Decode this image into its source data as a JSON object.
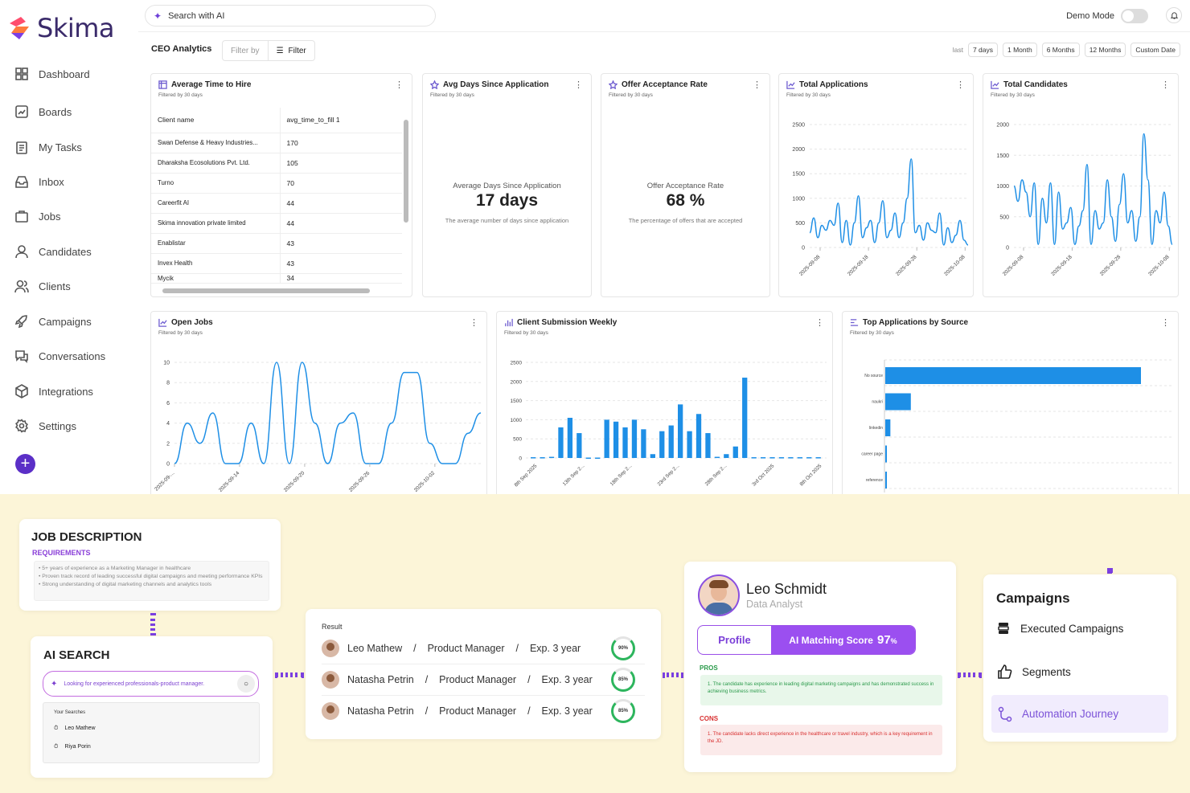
{
  "app": {
    "name": "Skima"
  },
  "sidebar": {
    "items": [
      {
        "label": "Dashboard",
        "icon": "dashboard-icon"
      },
      {
        "label": "Boards",
        "icon": "boards-icon"
      },
      {
        "label": "My Tasks",
        "icon": "tasks-icon"
      },
      {
        "label": "Inbox",
        "icon": "inbox-icon"
      },
      {
        "label": "Jobs",
        "icon": "briefcase-icon"
      },
      {
        "label": "Candidates",
        "icon": "user-icon"
      },
      {
        "label": "Clients",
        "icon": "users-icon"
      },
      {
        "label": "Campaigns",
        "icon": "rocket-icon"
      },
      {
        "label": "Conversations",
        "icon": "chat-icon"
      },
      {
        "label": "Integrations",
        "icon": "box-icon"
      },
      {
        "label": "Settings",
        "icon": "gear-icon"
      }
    ],
    "add_label": "+"
  },
  "topbar": {
    "search_placeholder": "Search with AI",
    "demo_mode_label": "Demo Mode",
    "demo_mode_on": false
  },
  "dashboard": {
    "title": "CEO Analytics",
    "filter_by": "Filter by",
    "filter_label": "Filter",
    "range_prefix": "last",
    "ranges": [
      "7 days",
      "1 Month",
      "6 Months",
      "12 Months",
      "Custom Date"
    ],
    "cards": {
      "time_to_hire": {
        "title": "Average Time to Hire",
        "subtitle": "Filtered by 30 days",
        "headers": [
          "Client name",
          "avg_time_to_fill 1"
        ],
        "rows": [
          [
            "Swan Defense & Heavy Industries...",
            "170"
          ],
          [
            "Dharaksha Ecosolutions Pvt. Ltd.",
            "105"
          ],
          [
            "Turno",
            "70"
          ],
          [
            "Careerfit AI",
            "44"
          ],
          [
            "Skima innovation private limited",
            "44"
          ],
          [
            "Enablistar",
            "43"
          ],
          [
            "Invex Health",
            "43"
          ],
          [
            "Mycik",
            "34"
          ]
        ]
      },
      "avg_days": {
        "title": "Avg Days Since Application",
        "subtitle": "Filtered by 30 days",
        "label": "Average Days Since Application",
        "value": "17 days",
        "description": "The average number of days since application"
      },
      "offer_rate": {
        "title": "Offer Acceptance Rate",
        "subtitle": "Filtered by 30 days",
        "label": "Offer Acceptance Rate",
        "value": "68 %",
        "description": "The percentage of offers that are accepted"
      },
      "total_applications": {
        "title": "Total Applications",
        "subtitle": "Filtered by 30 days"
      },
      "total_candidates": {
        "title": "Total Candidates",
        "subtitle": "Filtered by 30 days"
      },
      "open_jobs": {
        "title": "Open Jobs",
        "subtitle": "Filtered by 30 days"
      },
      "client_submission": {
        "title": "Client Submission Weekly",
        "subtitle": "Filtered by 30 days"
      },
      "top_sources": {
        "title": "Top Applications by Source",
        "subtitle": "Filtered by 30 days"
      }
    }
  },
  "chart_data": [
    {
      "id": "total_applications",
      "type": "line",
      "title": "Total Applications",
      "x_ticks": [
        "2025-09-08",
        "2025-09-18",
        "2025-09-28",
        "2025-10-08"
      ],
      "y_ticks": [
        0,
        500,
        1000,
        1500,
        2000,
        2500
      ],
      "ylim": [
        0,
        2500
      ],
      "values": [
        300,
        600,
        200,
        450,
        350,
        550,
        450,
        900,
        100,
        550,
        50,
        500,
        1050,
        200,
        400,
        550,
        100,
        500,
        950,
        200,
        350,
        700,
        200,
        500,
        1000,
        1800,
        300,
        450,
        150,
        500,
        350,
        300,
        700,
        50,
        400,
        100,
        250,
        550,
        150,
        50
      ]
    },
    {
      "id": "total_candidates",
      "type": "line",
      "title": "Total Candidates",
      "x_ticks": [
        "2025-09-08",
        "2025-09-18",
        "2025-09-28",
        "2025-10-08"
      ],
      "y_ticks": [
        0,
        500,
        1000,
        1500,
        2000
      ],
      "ylim": [
        0,
        2000
      ],
      "values": [
        1000,
        750,
        1100,
        900,
        500,
        1050,
        50,
        800,
        400,
        1050,
        50,
        900,
        300,
        400,
        650,
        50,
        350,
        600,
        1350,
        50,
        600,
        300,
        400,
        1100,
        500,
        100,
        700,
        1200,
        400,
        600,
        100,
        500,
        1850,
        1100,
        50,
        600,
        400,
        900,
        350,
        50
      ]
    },
    {
      "id": "open_jobs",
      "type": "line",
      "title": "Open Jobs",
      "x_ticks": [
        "2025-09-...",
        "2025-09-14",
        "2025-09-20",
        "2025-09-26",
        "2025-10-02"
      ],
      "y_ticks": [
        0,
        2,
        4,
        6,
        8,
        10
      ],
      "ylim": [
        0,
        10
      ],
      "values": [
        0,
        4,
        2,
        5,
        0,
        0,
        4,
        0,
        10,
        0,
        10,
        4,
        0,
        4,
        5,
        0,
        0,
        4,
        9,
        9,
        2,
        0,
        0,
        3,
        5
      ]
    },
    {
      "id": "client_submission",
      "type": "bar",
      "title": "Client Submission Weekly",
      "x_ticks": [
        "8th Sep 2025",
        "13th Sep 2...",
        "18th Sep 2...",
        "23rd Sep 2...",
        "28th Sep 2...",
        "3rd Oct 2025",
        "8th Oct 2025"
      ],
      "y_ticks": [
        0,
        500,
        1000,
        1500,
        2000,
        2500
      ],
      "ylim": [
        0,
        2500
      ],
      "values": [
        20,
        20,
        30,
        800,
        1050,
        650,
        10,
        10,
        1000,
        950,
        800,
        1000,
        750,
        100,
        700,
        850,
        1400,
        700,
        1150,
        650,
        30,
        100,
        300,
        2100,
        20,
        20,
        20,
        20,
        20,
        20,
        20,
        20
      ]
    },
    {
      "id": "top_sources",
      "type": "bar",
      "orientation": "horizontal",
      "title": "Top Applications by Source",
      "categories": [
        "No source",
        "naukri",
        "linkedin",
        "career page",
        "reference"
      ],
      "values": [
        100,
        10,
        2,
        0.5,
        0.5
      ]
    }
  ],
  "promo": {
    "job_description": {
      "title": "JOB DESCRIPTION",
      "requirements_label": "REQUIREMENTS",
      "lines": [
        "• 5+ years of experience as a Marketing Manager in healthcare",
        "• Proven track record of leading successful digital campaigns and meeting performance KPIs",
        "• Strong understanding of digital marketing channels and analytics tools"
      ]
    },
    "ai_search": {
      "title": "AI SEARCH",
      "query": "Looking for experienced professionals-product manager.",
      "your_searches_label": "Your Searches",
      "searches": [
        "Leo Mathew",
        "Riya Porin"
      ]
    },
    "results": {
      "label": "Result",
      "rows": [
        {
          "name": "Leo Mathew",
          "role": "Product Manager",
          "exp": "Exp. 3 year",
          "score": "90%",
          "score_value": 90
        },
        {
          "name": "Natasha Petrin",
          "role": "Product Manager",
          "exp": "Exp. 3 year",
          "score": "85%",
          "score_value": 85
        },
        {
          "name": "Natasha Petrin",
          "role": "Product Manager",
          "exp": "Exp. 3 year",
          "score": "85%",
          "score_value": 85
        }
      ],
      "separator": "/"
    },
    "profile": {
      "name": "Leo Schmidt",
      "role": "Data Analyst",
      "tab_profile": "Profile",
      "tab_score_label": "AI Matching Score",
      "tab_score_value": "97",
      "tab_score_unit": "%",
      "pros_label": "PROS",
      "pros_text": "1. The candidate has experience in leading digital marketing campaigns and has demonstrated success in achieving business metrics.",
      "cons_label": "CONS",
      "cons_text": "1. The candidate lacks direct experience in the healthcare or travel industry, which is a key requirement in the JD."
    },
    "campaigns": {
      "title": "Campaigns",
      "items": [
        {
          "label": "Executed Campaigns",
          "icon": "database-icon"
        },
        {
          "label": "Segments",
          "icon": "thumbs-up-icon"
        },
        {
          "label": "Automation Journey",
          "icon": "journey-icon"
        }
      ]
    }
  },
  "colors": {
    "brand": "#5b2fc7",
    "chart_blue": "#1e8fe6",
    "promo_bg": "#fcf5d8",
    "accent_purple": "#7a3fe0",
    "score_green": "#2db55d"
  }
}
